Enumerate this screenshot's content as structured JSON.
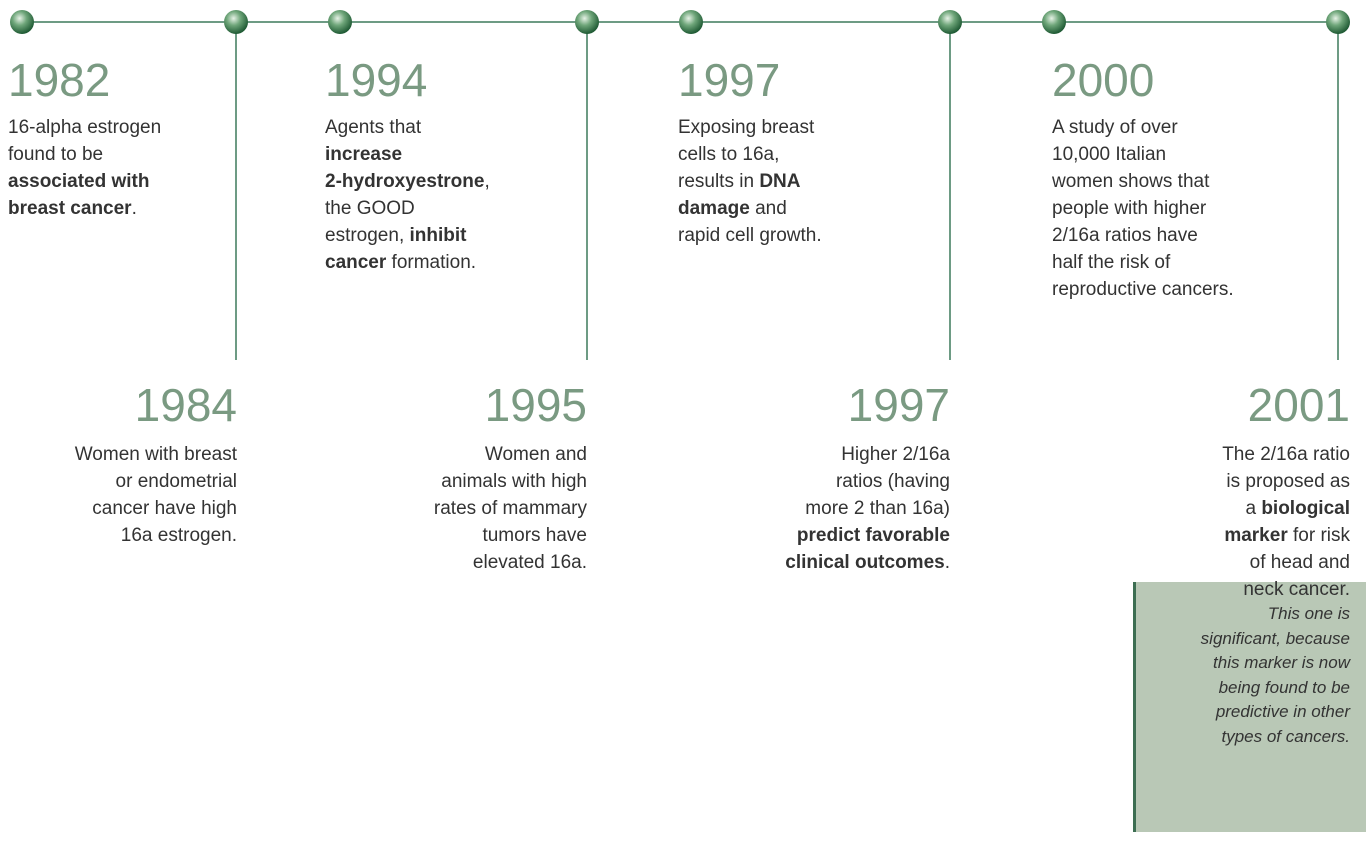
{
  "events": [
    {
      "top": {
        "year": "1982",
        "lines": [
          [
            {
              "text": "16-alpha estrogen",
              "bold": false
            }
          ],
          [
            {
              "text": "found to be",
              "bold": false
            }
          ],
          [
            {
              "text": "associated with",
              "bold": true
            }
          ],
          [
            {
              "text": "breast cancer",
              "bold": true
            },
            {
              "text": ".",
              "bold": false
            }
          ]
        ]
      },
      "bottom": {
        "year": "1984",
        "lines": [
          [
            {
              "text": "Women with breast",
              "bold": false
            }
          ],
          [
            {
              "text": "or endometrial",
              "bold": false
            }
          ],
          [
            {
              "text": "cancer have high",
              "bold": false
            }
          ],
          [
            {
              "text": "16a estrogen.",
              "bold": false
            }
          ]
        ]
      }
    },
    {
      "top": {
        "year": "1994",
        "lines": [
          [
            {
              "text": "Agents that",
              "bold": false
            }
          ],
          [
            {
              "text": "increase",
              "bold": true
            }
          ],
          [
            {
              "text": "2-hydroxyestrone",
              "bold": true
            },
            {
              "text": ",",
              "bold": false
            }
          ],
          [
            {
              "text": "the GOOD",
              "bold": false
            }
          ],
          [
            {
              "text": "estrogen, ",
              "bold": false
            },
            {
              "text": "inhibit",
              "bold": true
            }
          ],
          [
            {
              "text": "cancer",
              "bold": true
            },
            {
              "text": " formation.",
              "bold": false
            }
          ]
        ]
      },
      "bottom": {
        "year": "1995",
        "lines": [
          [
            {
              "text": "Women and",
              "bold": false
            }
          ],
          [
            {
              "text": "animals with high",
              "bold": false
            }
          ],
          [
            {
              "text": "rates of mammary",
              "bold": false
            }
          ],
          [
            {
              "text": "tumors have",
              "bold": false
            }
          ],
          [
            {
              "text": "elevated 16a.",
              "bold": false
            }
          ]
        ]
      }
    },
    {
      "top": {
        "year": "1997",
        "lines": [
          [
            {
              "text": "Exposing breast",
              "bold": false
            }
          ],
          [
            {
              "text": "cells to 16a,",
              "bold": false
            }
          ],
          [
            {
              "text": "results in ",
              "bold": false
            },
            {
              "text": "DNA",
              "bold": true
            }
          ],
          [
            {
              "text": "damage",
              "bold": true
            },
            {
              "text": " and",
              "bold": false
            }
          ],
          [
            {
              "text": "rapid cell growth.",
              "bold": false
            }
          ]
        ]
      },
      "bottom": {
        "year": "1997",
        "lines": [
          [
            {
              "text": "Higher 2/16a",
              "bold": false
            }
          ],
          [
            {
              "text": "ratios (having",
              "bold": false
            }
          ],
          [
            {
              "text": "more 2 than 16a)",
              "bold": false
            }
          ],
          [
            {
              "text": "predict favorable",
              "bold": true
            }
          ],
          [
            {
              "text": "clinical outcomes",
              "bold": true
            },
            {
              "text": ".",
              "bold": false
            }
          ]
        ]
      }
    },
    {
      "top": {
        "year": "2000",
        "lines": [
          [
            {
              "text": "A study of over",
              "bold": false
            }
          ],
          [
            {
              "text": "10,000 Italian",
              "bold": false
            }
          ],
          [
            {
              "text": "women shows that",
              "bold": false
            }
          ],
          [
            {
              "text": "people with higher",
              "bold": false
            }
          ],
          [
            {
              "text": "2/16a ratios have",
              "bold": false
            }
          ],
          [
            {
              "text": "half the risk of",
              "bold": false
            }
          ],
          [
            {
              "text": "reproductive cancers.",
              "bold": false
            }
          ]
        ]
      },
      "bottom": {
        "year": "2001",
        "lines": [
          [
            {
              "text": "The 2/16a ratio",
              "bold": false
            }
          ],
          [
            {
              "text": "is proposed as",
              "bold": false
            }
          ],
          [
            {
              "text": "a ",
              "bold": false
            },
            {
              "text": "biological",
              "bold": true
            }
          ],
          [
            {
              "text": "marker",
              "bold": true
            },
            {
              "text": " for risk",
              "bold": false
            }
          ],
          [
            {
              "text": "of head and",
              "bold": false
            }
          ],
          [
            {
              "text": "neck cancer.",
              "bold": false
            }
          ]
        ]
      }
    }
  ],
  "note": {
    "lines": [
      "This one is",
      "significant, because",
      "this marker is now",
      "being found to be",
      "predictive in other",
      "types of cancers."
    ]
  }
}
